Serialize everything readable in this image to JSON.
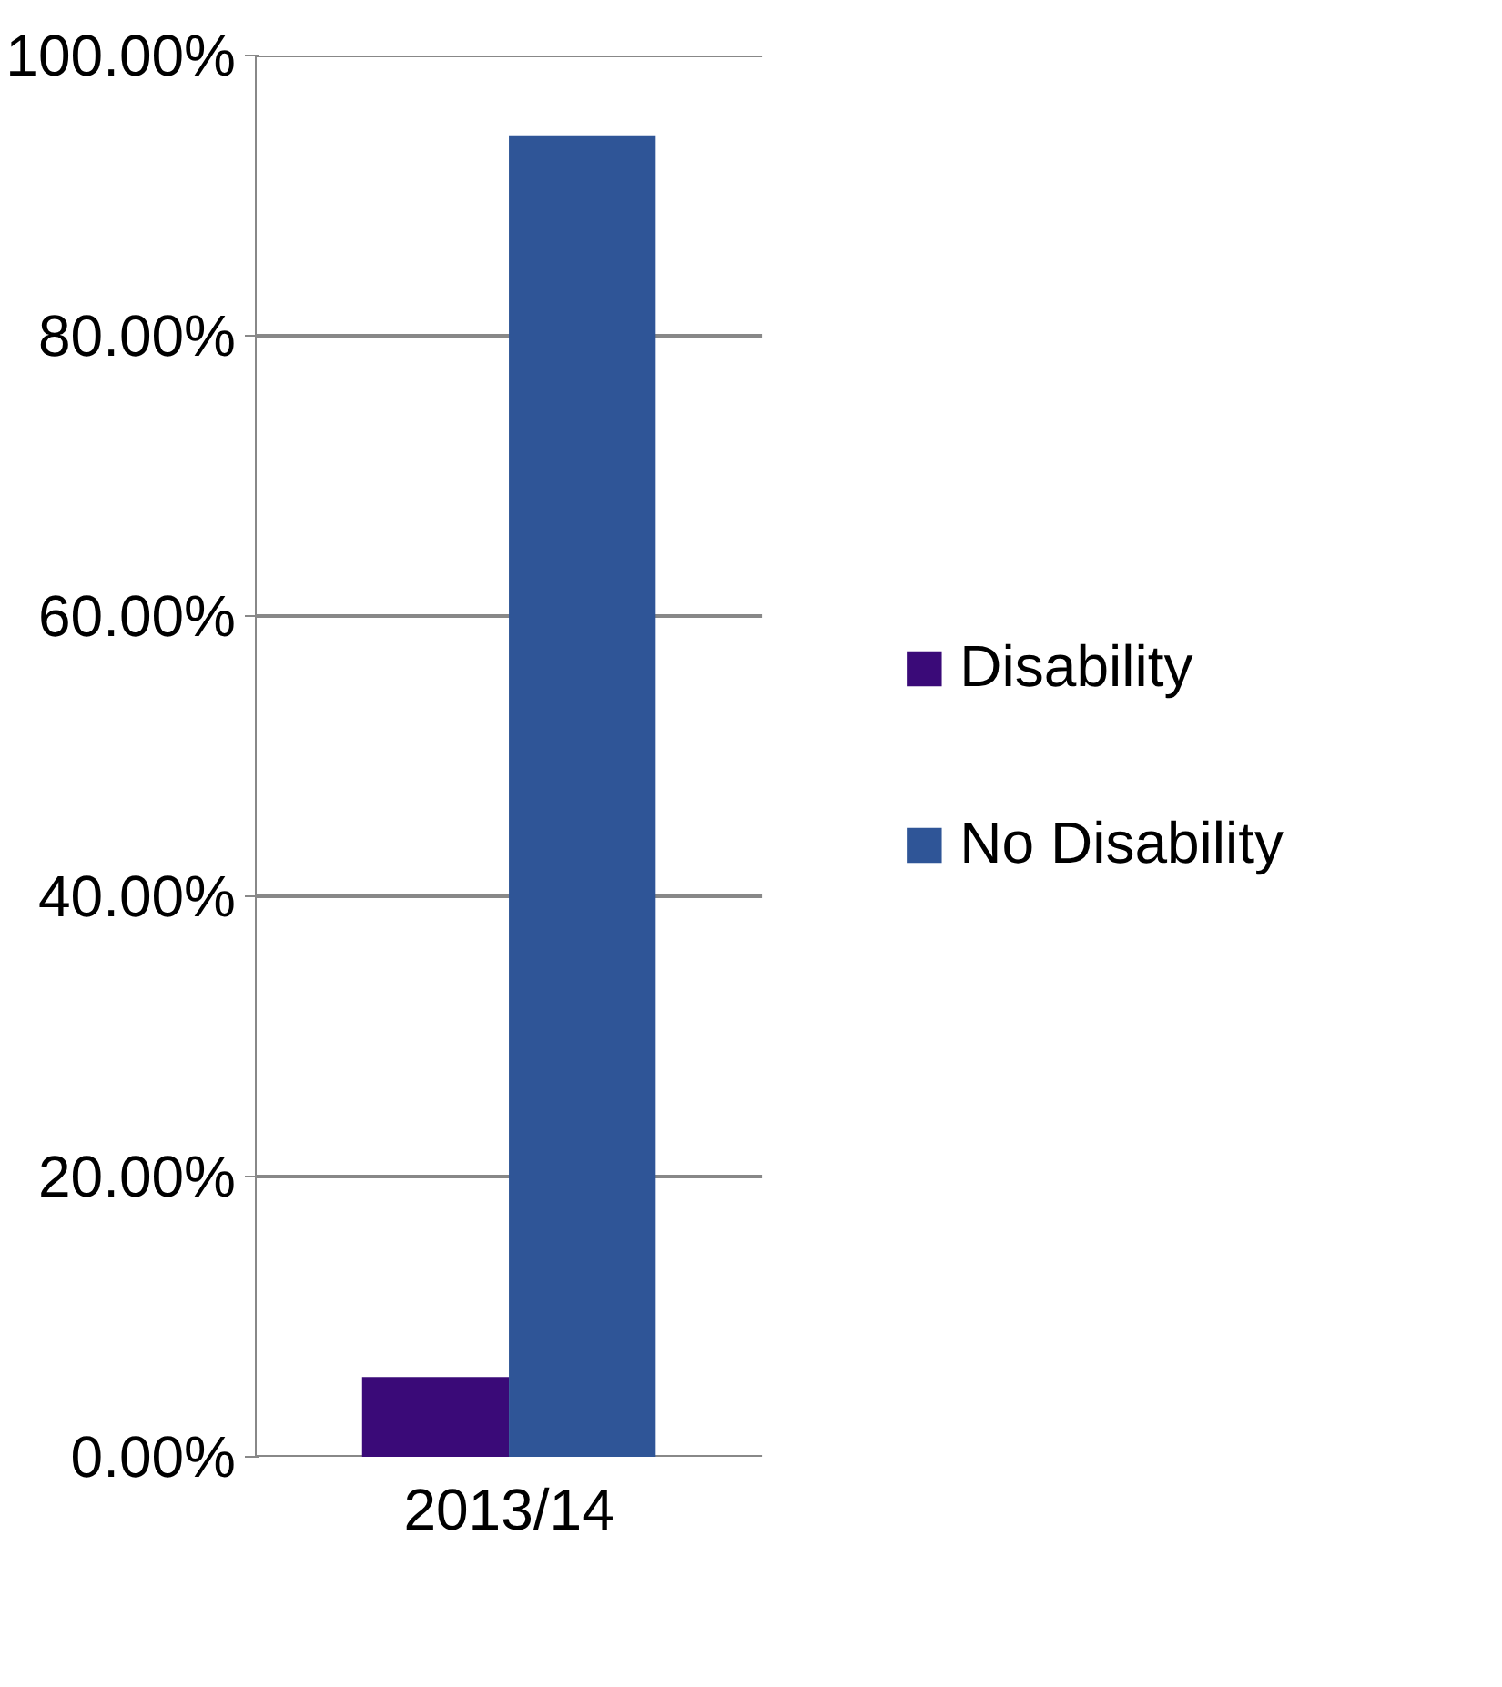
{
  "chart_data": {
    "type": "bar",
    "categories": [
      "2013/14"
    ],
    "series": [
      {
        "name": "Disability",
        "color": "#3a0a78",
        "values": [
          5.7
        ]
      },
      {
        "name": "No Disability",
        "color": "#2f5597",
        "values": [
          94.3
        ]
      }
    ],
    "ylim": [
      0,
      100
    ],
    "yticks": [
      {
        "value": 0,
        "label": "0.00%"
      },
      {
        "value": 20,
        "label": "20.00%"
      },
      {
        "value": 40,
        "label": "40.00%"
      },
      {
        "value": 60,
        "label": "60.00%"
      },
      {
        "value": 80,
        "label": "80.00%"
      },
      {
        "value": 100,
        "label": "100.00%"
      }
    ],
    "grid": "y",
    "legend": "right"
  }
}
